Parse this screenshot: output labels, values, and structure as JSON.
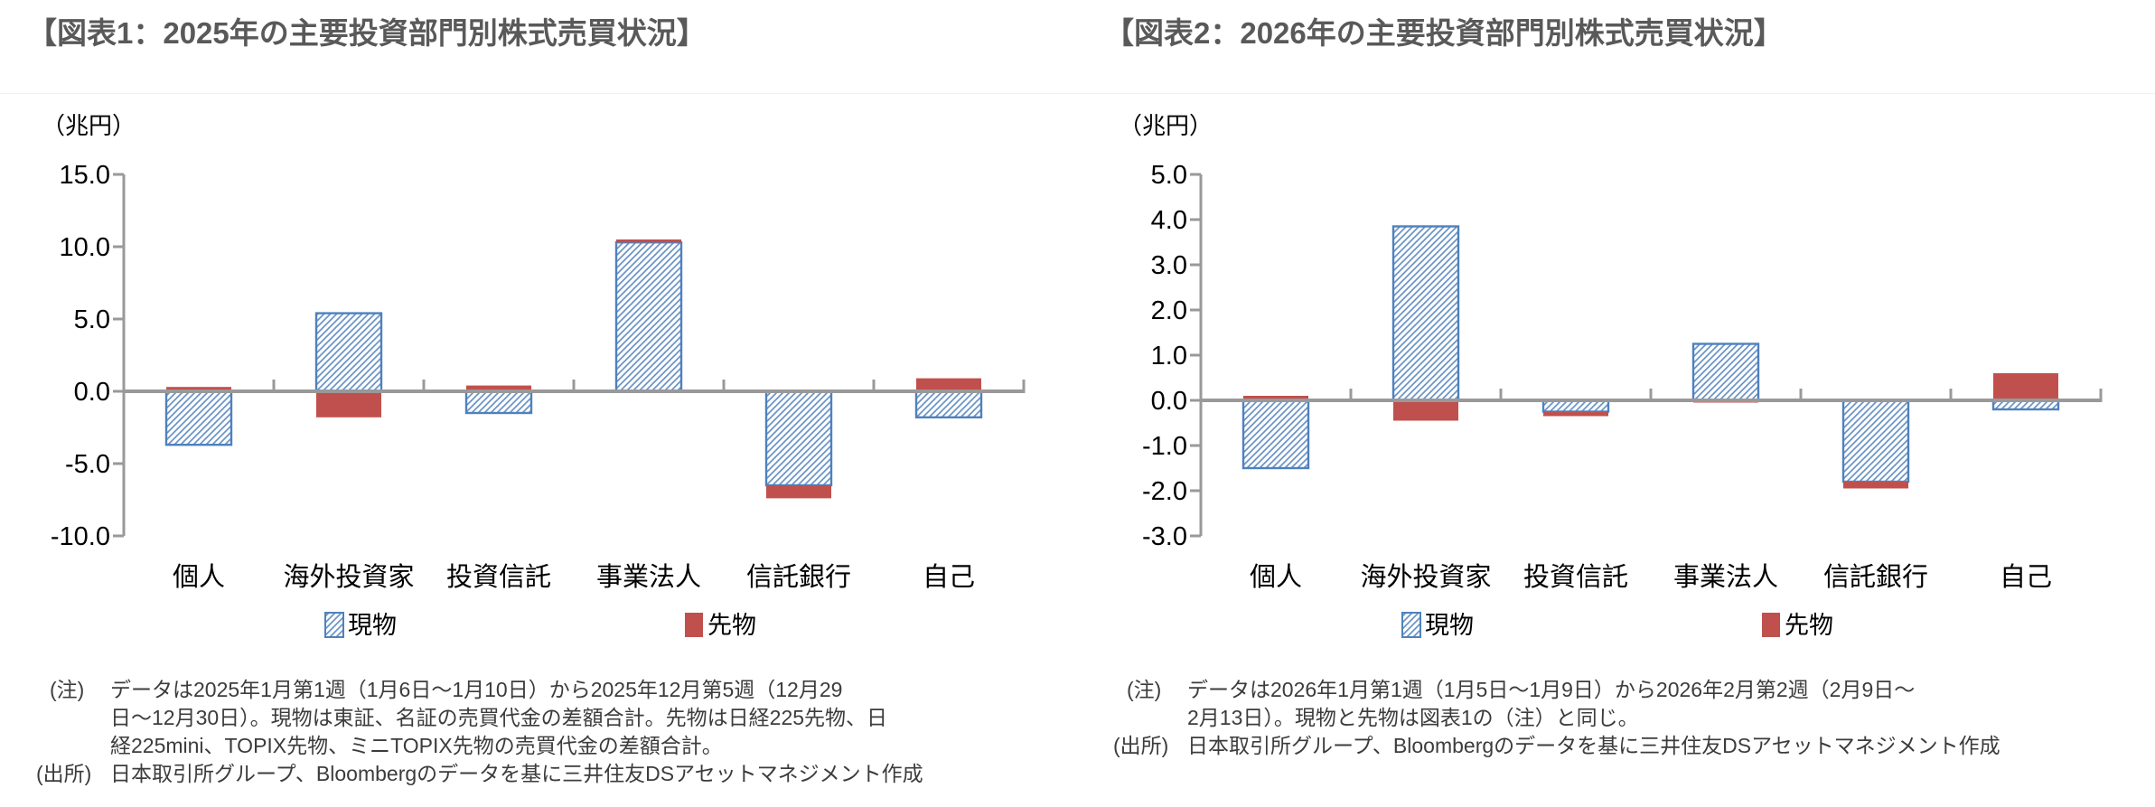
{
  "colors": {
    "spot_hatch": "#6b94c6",
    "spot_border": "#4f81bd",
    "futures_fill": "#c0504d",
    "axis_gray": "#999999",
    "title_gray": "#595959",
    "label_black": "#000000",
    "note_gray": "#3c3c3c"
  },
  "panels": [
    {
      "title": "【図表1：2025年の主要投資部門別株式売買状況】",
      "note_label": "(注)",
      "note_lines": [
        "データは2025年1月第1週（1月6日～1月10日）から2025年12月第5週（12月29",
        "日～12月30日）。現物は東証、名証の売買代金の差額合計。先物は日経225先物、日",
        "経225mini、TOPIX先物、ミニTOPIX先物の売買代金の差額合計。"
      ],
      "source_label": "(出所)",
      "source_text": "日本取引所グループ、Bloombergのデータを基に三井住友DSアセットマネジメント作成"
    },
    {
      "title": "【図表2：2026年の主要投資部門別株式売買状況】",
      "note_label": "(注)",
      "note_lines": [
        "データは2026年1月第1週（1月5日～1月9日）から2026年2月第2週（2月9日～",
        "2月13日）。現物と先物は図表1の（注）と同じ。"
      ],
      "source_label": "(出所)",
      "source_text": "日本取引所グループ、Bloombergのデータを基に三井住友DSアセットマネジメント作成"
    }
  ],
  "chart_data": [
    {
      "type": "bar",
      "stacked": true,
      "title": "図表1：2025年の主要投資部門別株式売買状況",
      "unit_label": "（兆円）",
      "categories": [
        "個人",
        "海外投資家",
        "投資信託",
        "事業法人",
        "信託銀行",
        "自己"
      ],
      "series": [
        {
          "name": "現物",
          "style": "blue-hatched",
          "values": [
            -3.7,
            5.4,
            -1.5,
            10.3,
            -6.5,
            -1.8
          ]
        },
        {
          "name": "先物",
          "style": "red-solid",
          "values": [
            0.3,
            -1.8,
            0.4,
            0.2,
            -0.9,
            0.9
          ]
        }
      ],
      "ylim": [
        -10.0,
        15.0
      ],
      "ytick_step": 5.0,
      "yticks": [
        15.0,
        10.0,
        5.0,
        0.0,
        -5.0,
        -10.0
      ],
      "grid": false,
      "legend_position": "bottom"
    },
    {
      "type": "bar",
      "stacked": true,
      "title": "図表2：2026年の主要投資部門別株式売買状況",
      "unit_label": "（兆円）",
      "categories": [
        "個人",
        "海外投資家",
        "投資信託",
        "事業法人",
        "信託銀行",
        "自己"
      ],
      "series": [
        {
          "name": "現物",
          "style": "blue-hatched",
          "values": [
            -1.5,
            3.85,
            -0.25,
            1.25,
            -1.8,
            -0.2
          ]
        },
        {
          "name": "先物",
          "style": "red-solid",
          "values": [
            0.1,
            -0.45,
            -0.1,
            -0.05,
            -0.15,
            0.6
          ]
        }
      ],
      "ylim": [
        -3.0,
        5.0
      ],
      "ytick_step": 1.0,
      "yticks": [
        5.0,
        4.0,
        3.0,
        2.0,
        1.0,
        0.0,
        -1.0,
        -2.0,
        -3.0
      ],
      "grid": false,
      "legend_position": "bottom"
    }
  ]
}
